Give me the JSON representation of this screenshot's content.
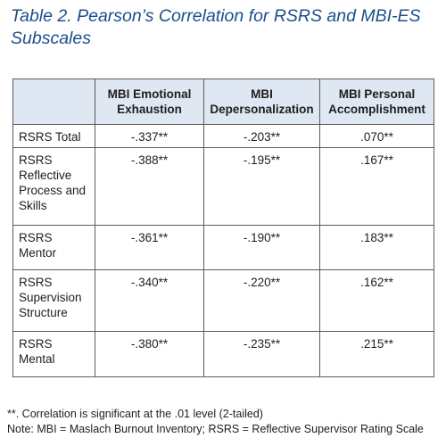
{
  "title": {
    "line1": "Table 2. Pearson’s Correlation for RSRS and MBI-ES",
    "line2": "Subscales"
  },
  "table": {
    "headers": [
      {
        "line1": "MBI Emotional",
        "line2": "Exhaustion"
      },
      {
        "line1": "MBI",
        "line2": "Depersonalization"
      },
      {
        "line1": "MBI Personal",
        "line2": "Accomplishment"
      }
    ],
    "rows": [
      {
        "label_lines": [
          "RSRS Total"
        ],
        "values": [
          "-.337**",
          "-.203**",
          ".070**"
        ]
      },
      {
        "label_lines": [
          "RSRS",
          "Reflective",
          "Process and",
          "Skills"
        ],
        "values": [
          "-.388**",
          "-.195**",
          ".167**"
        ]
      },
      {
        "label_lines": [
          "RSRS",
          "Mentor"
        ],
        "values": [
          "-.361**",
          "-.190**",
          ".183**"
        ]
      },
      {
        "label_lines": [
          "RSRS",
          "Supervision",
          "Structure"
        ],
        "values": [
          "-.340**",
          "-.220**",
          ".162**"
        ]
      },
      {
        "label_lines": [
          "RSRS",
          "Mental"
        ],
        "values": [
          "-.380**",
          "-.235**",
          ".215**"
        ]
      }
    ]
  },
  "notes": {
    "significance": "**. Correlation is significant at the .01 level (2-tailed)",
    "abbreviations": "Note: MBI = Maslach Burnout Inventory; RSRS = Reflective Supervisor Rating Scale"
  },
  "colors": {
    "title": "#1b4f8a",
    "header_bg": "#dfe8f2",
    "border": "#5b5b5b"
  }
}
